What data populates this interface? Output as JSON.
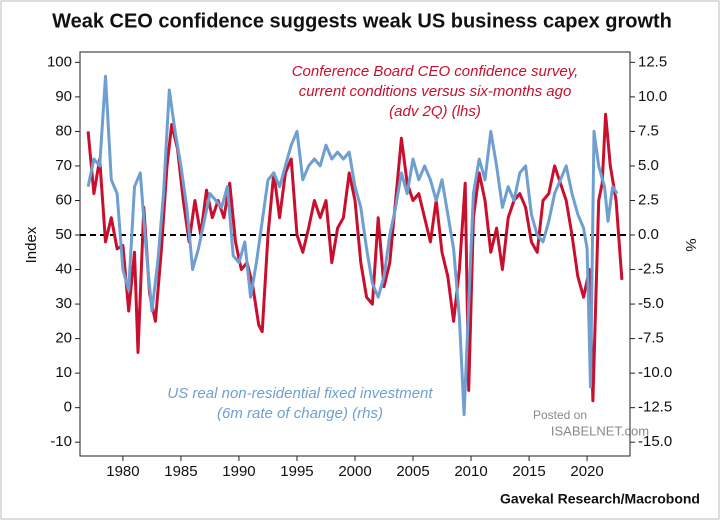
{
  "chart_data": {
    "type": "line",
    "title": "Weak CEO confidence suggests weak US business capex growth",
    "ylabel": "Index",
    "y2label": "%",
    "source": "Gavekal Research/Macrobond",
    "watermark": [
      "Posted on",
      "ISABELNET.com"
    ],
    "annotations": [
      {
        "lines": [
          "Conference Board CEO confidence survey,",
          "current conditions versus six-months ago",
          "(adv 2Q) (lhs)"
        ],
        "color": "#c8102e"
      },
      {
        "lines": [
          "US real non-residential fixed investment",
          "(6m rate of change) (rhs)"
        ],
        "color": "#6f9fd0"
      }
    ],
    "xlim": [
      1976.3,
      2023.7
    ],
    "xticks": [
      1980,
      1985,
      1990,
      1995,
      2000,
      2005,
      2010,
      2015,
      2020
    ],
    "ylim": [
      -14,
      103
    ],
    "yticks": [
      -10,
      0,
      10,
      20,
      30,
      40,
      50,
      60,
      70,
      80,
      90,
      100
    ],
    "y2lim": [
      -16,
      13.25
    ],
    "y2ticks": [
      {
        "value": -15,
        "label": "-15.0"
      },
      -12.5,
      {
        "value": -10,
        "label": "-10.0"
      },
      -7.5,
      {
        "value": -5,
        "label": "-5.0"
      },
      -2.5,
      {
        "value": 0,
        "label": "0.0"
      },
      2.5,
      {
        "value": 5,
        "label": "5.0"
      },
      7.5,
      {
        "value": 10,
        "label": "10.0"
      },
      12.5
    ],
    "hline": {
      "axis": "y2",
      "value": 0,
      "style": "dashed"
    },
    "series": [
      {
        "name": "Conference Board CEO confidence survey",
        "color": "#c8102e",
        "axis": "y",
        "x": [
          1977.0,
          1977.5,
          1978.0,
          1978.5,
          1979.0,
          1979.5,
          1980.0,
          1980.5,
          1981.0,
          1981.3,
          1981.8,
          1982.3,
          1982.8,
          1983.3,
          1983.8,
          1984.2,
          1984.7,
          1985.2,
          1985.7,
          1986.2,
          1986.7,
          1987.2,
          1987.7,
          1988.2,
          1988.7,
          1989.2,
          1989.7,
          1990.2,
          1990.7,
          1991.2,
          1991.7,
          1992.0,
          1992.5,
          1993.0,
          1993.5,
          1994.0,
          1994.5,
          1995.0,
          1995.5,
          1996.0,
          1996.5,
          1997.0,
          1997.5,
          1998.0,
          1998.5,
          1999.0,
          1999.5,
          2000.0,
          2000.5,
          2001.0,
          2001.5,
          2002.0,
          2002.5,
          2003.0,
          2003.5,
          2004.0,
          2004.5,
          2005.0,
          2005.5,
          2006.0,
          2006.5,
          2007.0,
          2007.5,
          2008.0,
          2008.5,
          2009.0,
          2009.5,
          2009.8,
          2010.2,
          2010.7,
          2011.2,
          2011.7,
          2012.2,
          2012.7,
          2013.2,
          2013.7,
          2014.2,
          2014.7,
          2015.2,
          2015.7,
          2016.2,
          2016.7,
          2017.2,
          2017.7,
          2018.2,
          2018.7,
          2019.2,
          2019.7,
          2020.2,
          2020.5,
          2021.0,
          2021.3,
          2021.6,
          2022.0,
          2022.5,
          2023.0
        ],
        "values": [
          80,
          62,
          72,
          48,
          55,
          46,
          47,
          28,
          45,
          16,
          58,
          33,
          25,
          45,
          70,
          82,
          75,
          60,
          48,
          60,
          50,
          63,
          55,
          60,
          55,
          65,
          48,
          40,
          42,
          35,
          24,
          22,
          50,
          68,
          55,
          68,
          72,
          50,
          45,
          52,
          60,
          55,
          60,
          42,
          52,
          55,
          68,
          60,
          42,
          32,
          30,
          55,
          35,
          42,
          60,
          78,
          65,
          60,
          62,
          55,
          48,
          60,
          45,
          38,
          25,
          40,
          65,
          5,
          55,
          68,
          60,
          45,
          52,
          40,
          55,
          60,
          62,
          58,
          48,
          45,
          60,
          62,
          70,
          65,
          60,
          50,
          38,
          32,
          40,
          2,
          60,
          65,
          85,
          70,
          60,
          37
        ]
      },
      {
        "name": "US real non-residential fixed investment",
        "color": "#6f9fd0",
        "axis": "y2",
        "x": [
          1977.0,
          1977.5,
          1978.0,
          1978.5,
          1979.0,
          1979.5,
          1980.0,
          1980.5,
          1981.0,
          1981.5,
          1982.0,
          1982.5,
          1983.0,
          1983.5,
          1984.0,
          1984.5,
          1985.0,
          1985.5,
          1986.0,
          1986.5,
          1987.0,
          1987.5,
          1988.0,
          1988.5,
          1989.0,
          1989.5,
          1990.0,
          1990.5,
          1991.0,
          1991.5,
          1992.0,
          1992.5,
          1993.0,
          1993.5,
          1994.0,
          1994.5,
          1995.0,
          1995.5,
          1996.0,
          1996.5,
          1997.0,
          1997.5,
          1998.0,
          1998.5,
          1999.0,
          1999.5,
          2000.0,
          2000.5,
          2001.0,
          2001.5,
          2002.0,
          2002.5,
          2003.0,
          2003.5,
          2004.0,
          2004.5,
          2005.0,
          2005.5,
          2006.0,
          2006.5,
          2007.0,
          2007.5,
          2008.0,
          2008.5,
          2009.0,
          2009.4,
          2009.8,
          2010.2,
          2010.7,
          2011.2,
          2011.7,
          2012.2,
          2012.7,
          2013.2,
          2013.7,
          2014.2,
          2014.7,
          2015.2,
          2015.7,
          2016.2,
          2016.7,
          2017.2,
          2017.7,
          2018.2,
          2018.7,
          2019.2,
          2019.7,
          2020.0,
          2020.3,
          2020.6,
          2021.0,
          2021.5,
          2021.8,
          2022.2,
          2022.6
        ],
        "values": [
          3.5,
          5.5,
          5.0,
          11.5,
          4.0,
          3.0,
          -2.5,
          -4.0,
          3.5,
          4.5,
          -1.0,
          -5.5,
          -2.0,
          3.0,
          10.5,
          7.5,
          5.0,
          2.0,
          -2.5,
          -1.0,
          1.0,
          3.0,
          2.5,
          2.0,
          3.5,
          -1.5,
          -2.0,
          -0.5,
          -4.5,
          -2.0,
          1.0,
          4.0,
          4.5,
          3.5,
          5.0,
          6.5,
          7.5,
          4.0,
          5.0,
          5.5,
          5.0,
          6.5,
          5.5,
          6.0,
          5.5,
          6.0,
          3.5,
          2.0,
          -1.0,
          -3.5,
          -4.5,
          -3.0,
          0.0,
          2.0,
          4.5,
          3.0,
          5.5,
          4.0,
          5.0,
          4.0,
          2.5,
          4.0,
          1.5,
          -1.0,
          -6.0,
          -13.0,
          -5.0,
          3.0,
          5.5,
          4.0,
          7.5,
          5.0,
          2.0,
          3.5,
          2.5,
          4.5,
          5.0,
          1.5,
          0.0,
          -0.5,
          1.0,
          3.0,
          4.0,
          5.0,
          3.0,
          1.5,
          0.5,
          -1.0,
          -11.0,
          7.5,
          5.0,
          3.5,
          1.0,
          3.5,
          3.0
        ]
      }
    ]
  }
}
